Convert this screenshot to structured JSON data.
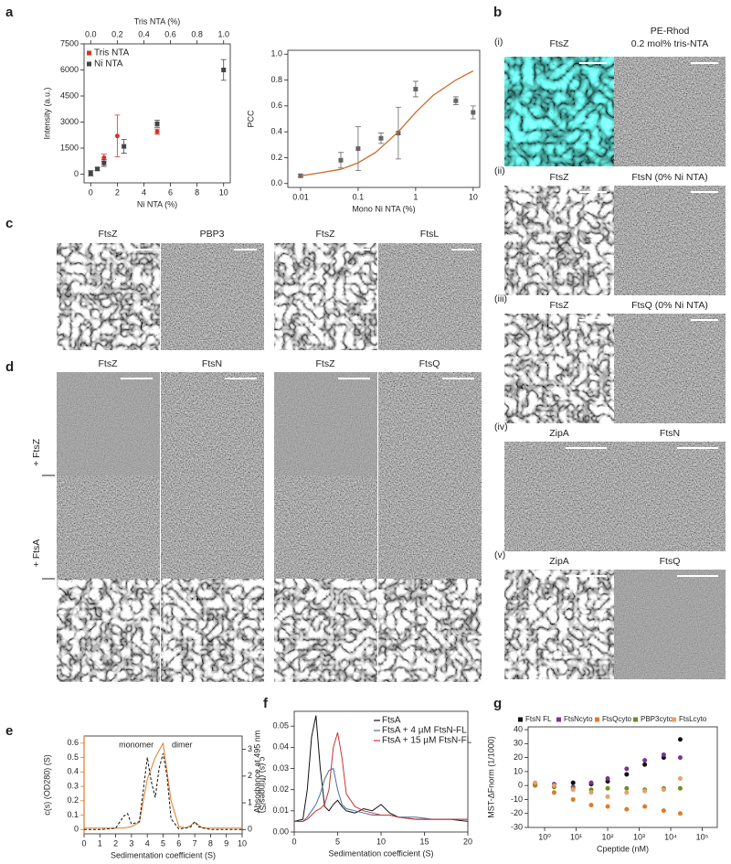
{
  "panel_labels": [
    "a",
    "b",
    "c",
    "d",
    "e",
    "f",
    "g"
  ],
  "chart_data": [
    {
      "type": "scatter",
      "xlabel": "Ni NTA (%)",
      "x2label": "Tris NTA (%)",
      "ylabel": "Intensity (a.u.)",
      "xlim": [
        -0.5,
        10.5
      ],
      "xticks": [
        0,
        2,
        4,
        6,
        8,
        10
      ],
      "x2lim": [
        -0.05,
        1.05
      ],
      "x2ticks": [
        {
          "value": 0,
          "label": "0.0"
        },
        0.2,
        0.4,
        0.6,
        0.8,
        {
          "value": 1,
          "label": "1.0"
        }
      ],
      "ylim": [
        -500,
        7500
      ],
      "yticks": [
        0,
        1500,
        3000,
        4500,
        6000,
        7500
      ],
      "legend": "upper left",
      "series": [
        {
          "name": "Tris NTA",
          "color": "#d9342b",
          "marker": "circle",
          "axis": "x2",
          "x": [
            0.1,
            0.2,
            0.5
          ],
          "values": [
            950,
            2200,
            2450
          ],
          "errors": [
            200,
            1200,
            150
          ]
        },
        {
          "name": "Ni NTA",
          "color": "#444444",
          "marker": "square",
          "x": [
            0,
            0.5,
            1,
            2.5,
            5,
            10
          ],
          "values": [
            50,
            300,
            650,
            1600,
            2900,
            6000
          ],
          "errors": [
            150,
            80,
            200,
            400,
            200,
            600
          ]
        }
      ]
    },
    {
      "type": "scatter",
      "xlabel": "Mono Ni NTA (%)",
      "ylabel": "PCC",
      "xlog": true,
      "xlim": [
        0.006,
        13
      ],
      "xticks": [
        0.01,
        0.1,
        1,
        10
      ],
      "ylim": [
        -0.03,
        1.03
      ],
      "yticks": [
        {
          "value": 0,
          "label": "0.0"
        },
        0.2,
        0.4,
        0.6,
        0.8,
        {
          "value": 1,
          "label": "1.0"
        }
      ],
      "series": [
        {
          "color": "#666666",
          "marker": "square",
          "x": [
            0.01,
            0.05,
            0.1,
            0.25,
            0.5,
            1,
            5,
            10
          ],
          "values": [
            0.06,
            0.18,
            0.27,
            0.35,
            0.39,
            0.73,
            0.64,
            0.55
          ],
          "errors": [
            0.01,
            0.06,
            0.17,
            0.04,
            0.2,
            0.06,
            0.03,
            0.05
          ]
        }
      ],
      "fit": {
        "color": "#cc6a2c",
        "x": [
          0.01,
          0.02,
          0.05,
          0.1,
          0.2,
          0.5,
          1,
          2,
          5,
          10
        ],
        "values": [
          0.06,
          0.08,
          0.11,
          0.16,
          0.24,
          0.4,
          0.55,
          0.68,
          0.8,
          0.87
        ]
      }
    },
    {
      "type": "line",
      "xlabel": "Sedimentation coefficient (S)",
      "ylabel": "c(s) (OD280) (S)",
      "y2label": "c (s) (fringes/S)",
      "ycolor": "#e07b28",
      "xlim": [
        0,
        10
      ],
      "xticks": [
        0,
        1,
        2,
        3,
        4,
        5,
        6,
        7,
        8,
        9,
        10
      ],
      "ylim": [
        -0.03,
        0.65
      ],
      "yticks": [
        0,
        0.1,
        0.2,
        0.3,
        0.4,
        0.5,
        0.6
      ],
      "y2lim": [
        -0.16,
        3.5
      ],
      "y2ticks": [
        0,
        1,
        2,
        3
      ],
      "annotations": [
        "monomer",
        "dimer"
      ],
      "series": [
        {
          "color": "#e07b28",
          "x": [
            0,
            0.5,
            1,
            1.5,
            2,
            2.5,
            3,
            3.5,
            4,
            4.5,
            5,
            5.5,
            6,
            6.5,
            7,
            7.5,
            8,
            8.5,
            9,
            9.5,
            10
          ],
          "values": [
            0.01,
            0.01,
            0.01,
            0.01,
            0.01,
            0.01,
            0.02,
            0.05,
            0.35,
            0.5,
            0.6,
            0.2,
            0.02,
            0.01,
            0.05,
            0.01,
            0.01,
            0.01,
            0.01,
            0.01,
            0.01
          ]
        },
        {
          "color": "#111111",
          "dash": true,
          "axis": "y2",
          "x": [
            0,
            1,
            2,
            2.5,
            2.75,
            3,
            3.5,
            3.75,
            4,
            4.25,
            4.5,
            4.75,
            5,
            5.25,
            5.5,
            6,
            6.75,
            7,
            7.25,
            8,
            10
          ],
          "values": [
            0,
            0,
            0.05,
            0.5,
            0.6,
            0.2,
            0.3,
            1.5,
            2.7,
            1.8,
            1.2,
            2.3,
            2.85,
            2,
            0.4,
            0.02,
            0.1,
            0.3,
            0.1,
            0,
            0
          ]
        }
      ]
    },
    {
      "type": "line",
      "xlabel": "Sedimentation coefficient (S)",
      "ylabel": "Absorbance at 495 nm",
      "xlim": [
        0,
        20
      ],
      "xticks": [
        0,
        5,
        10,
        15,
        20
      ],
      "ylim": [
        0,
        0.057
      ],
      "yticks": [
        {
          "value": 0,
          "label": "0.00"
        },
        0.01,
        0.02,
        0.03,
        0.04,
        0.05
      ],
      "legend": "upper right",
      "x": [
        0,
        1,
        1.5,
        2,
        2.5,
        3,
        3.5,
        4,
        4.5,
        5,
        5.5,
        6,
        7,
        8,
        9,
        10,
        11,
        12,
        14,
        16,
        18,
        20
      ],
      "series": [
        {
          "name": "FtsA",
          "color": "#111111",
          "values": [
            0.005,
            0.006,
            0.02,
            0.045,
            0.055,
            0.03,
            0.012,
            0.01,
            0.013,
            0.015,
            0.012,
            0.01,
            0.009,
            0.011,
            0.01,
            0.013,
            0.009,
            0.007,
            0.006,
            0.006,
            0.006,
            0.005
          ]
        },
        {
          "name": "FtsA + 4 µM FtsN-FL",
          "color": "#4a6fa5",
          "values": [
            0.005,
            0.005,
            0.007,
            0.01,
            0.013,
            0.018,
            0.025,
            0.029,
            0.03,
            0.02,
            0.013,
            0.011,
            0.01,
            0.009,
            0.008,
            0.008,
            0.008,
            0.007,
            0.007,
            0.006,
            0.006,
            0.006
          ]
        },
        {
          "name": "FtsA + 15 µM FtsN-FL",
          "color": "#cc3333",
          "values": [
            0.005,
            0.005,
            0.006,
            0.008,
            0.01,
            0.011,
            0.013,
            0.02,
            0.04,
            0.047,
            0.035,
            0.018,
            0.012,
            0.01,
            0.009,
            0.008,
            0.008,
            0.007,
            0.006,
            0.006,
            0.006,
            0.006
          ]
        }
      ]
    },
    {
      "type": "scatter",
      "xlabel": "Cpeptide (nM)",
      "ylabel": "MST-ΔFnorm (1/1000)",
      "xlog": true,
      "xlim": [
        0.3,
        300000
      ],
      "xticks": [
        {
          "value": 1,
          "label": "10⁰"
        },
        {
          "value": 10,
          "label": "10¹"
        },
        {
          "value": 100,
          "label": "10²"
        },
        {
          "value": 1000,
          "label": "10³"
        },
        {
          "value": 10000,
          "label": "10⁴"
        },
        {
          "value": 100000,
          "label": "10⁵"
        }
      ],
      "ylim": [
        -30,
        42
      ],
      "yticks": [
        -30,
        -20,
        -10,
        0,
        10,
        20,
        30,
        40
      ],
      "legend": "top",
      "x": [
        0.5,
        2,
        8,
        30,
        100,
        400,
        1500,
        6000,
        20000
      ],
      "series": [
        {
          "name": "FtsN FL",
          "color": "#111111",
          "marker": "circle",
          "values": [
            1,
            0,
            2,
            1,
            3,
            8,
            15,
            20,
            33
          ]
        },
        {
          "name": "FtsNcyto",
          "color": "#7b3294",
          "marker": "circle",
          "values": [
            0,
            1,
            -1,
            2,
            5,
            12,
            18,
            22,
            20
          ]
        },
        {
          "name": "FtsQcyto",
          "color": "#e07b28",
          "marker": "circle",
          "values": [
            0,
            -5,
            -10,
            -14,
            -15,
            -17,
            -15,
            -18,
            -20
          ]
        },
        {
          "name": "PBP3cyto",
          "color": "#6b8e23",
          "marker": "circle",
          "values": [
            1,
            -1,
            -2,
            -3,
            -2,
            -2,
            -3,
            -2,
            -2
          ]
        },
        {
          "name": "FtsLcyto",
          "color": "#e8a070",
          "marker": "circle",
          "values": [
            2,
            0,
            -3,
            -5,
            -8,
            -5,
            -4,
            -3,
            5
          ]
        }
      ]
    }
  ],
  "panel_b": {
    "rows": [
      {
        "numeral": "(i)",
        "left": {
          "text": "FtsZ",
          "color": "#222222"
        },
        "right": {
          "text": "PE-Rhod",
          "color": "#222222"
        },
        "right_note": "0.2 mol% tris-NTA"
      },
      {
        "numeral": "(ii)",
        "left": {
          "text": "FtsZ",
          "color": "#3d7f7b"
        },
        "right": {
          "text": "FtsN (0% Ni NTA)",
          "color": "#5b2d7a"
        }
      },
      {
        "numeral": "(iii)",
        "left": {
          "text": "FtsZ",
          "color": "#3d7f7b"
        },
        "right": {
          "text": "FtsQ (0% Ni NTA)",
          "color": "#d8b040"
        }
      },
      {
        "numeral": "(iv)",
        "left": {
          "text": "ZipA",
          "color": "#8b1a2b"
        },
        "right": {
          "text": "FtsN",
          "color": "#5b2d7a"
        }
      },
      {
        "numeral": "(v)",
        "left": {
          "text": "ZipA",
          "color": "#8b1a2b"
        },
        "right": {
          "text": "FtsQ",
          "color": "#8a8a2a"
        }
      }
    ]
  },
  "panel_c": {
    "labels": [
      {
        "text": "FtsZ",
        "color": "#3d7f7b"
      },
      {
        "text": "PBP3",
        "color": "#555555"
      },
      {
        "text": "FtsZ",
        "color": "#3d7f7b"
      },
      {
        "text": "FtsL",
        "color": "#555555"
      }
    ]
  },
  "panel_d": {
    "labels": [
      {
        "text": "FtsZ",
        "color": "#3d7f7b"
      },
      {
        "text": "FtsN",
        "color": "#5b2d7a"
      },
      {
        "text": "FtsZ",
        "color": "#3d7f7b"
      },
      {
        "text": "FtsQ",
        "color": "#8a8a2a"
      }
    ],
    "row_labels": [
      "+ FtsZ",
      "+ FtsA"
    ]
  }
}
